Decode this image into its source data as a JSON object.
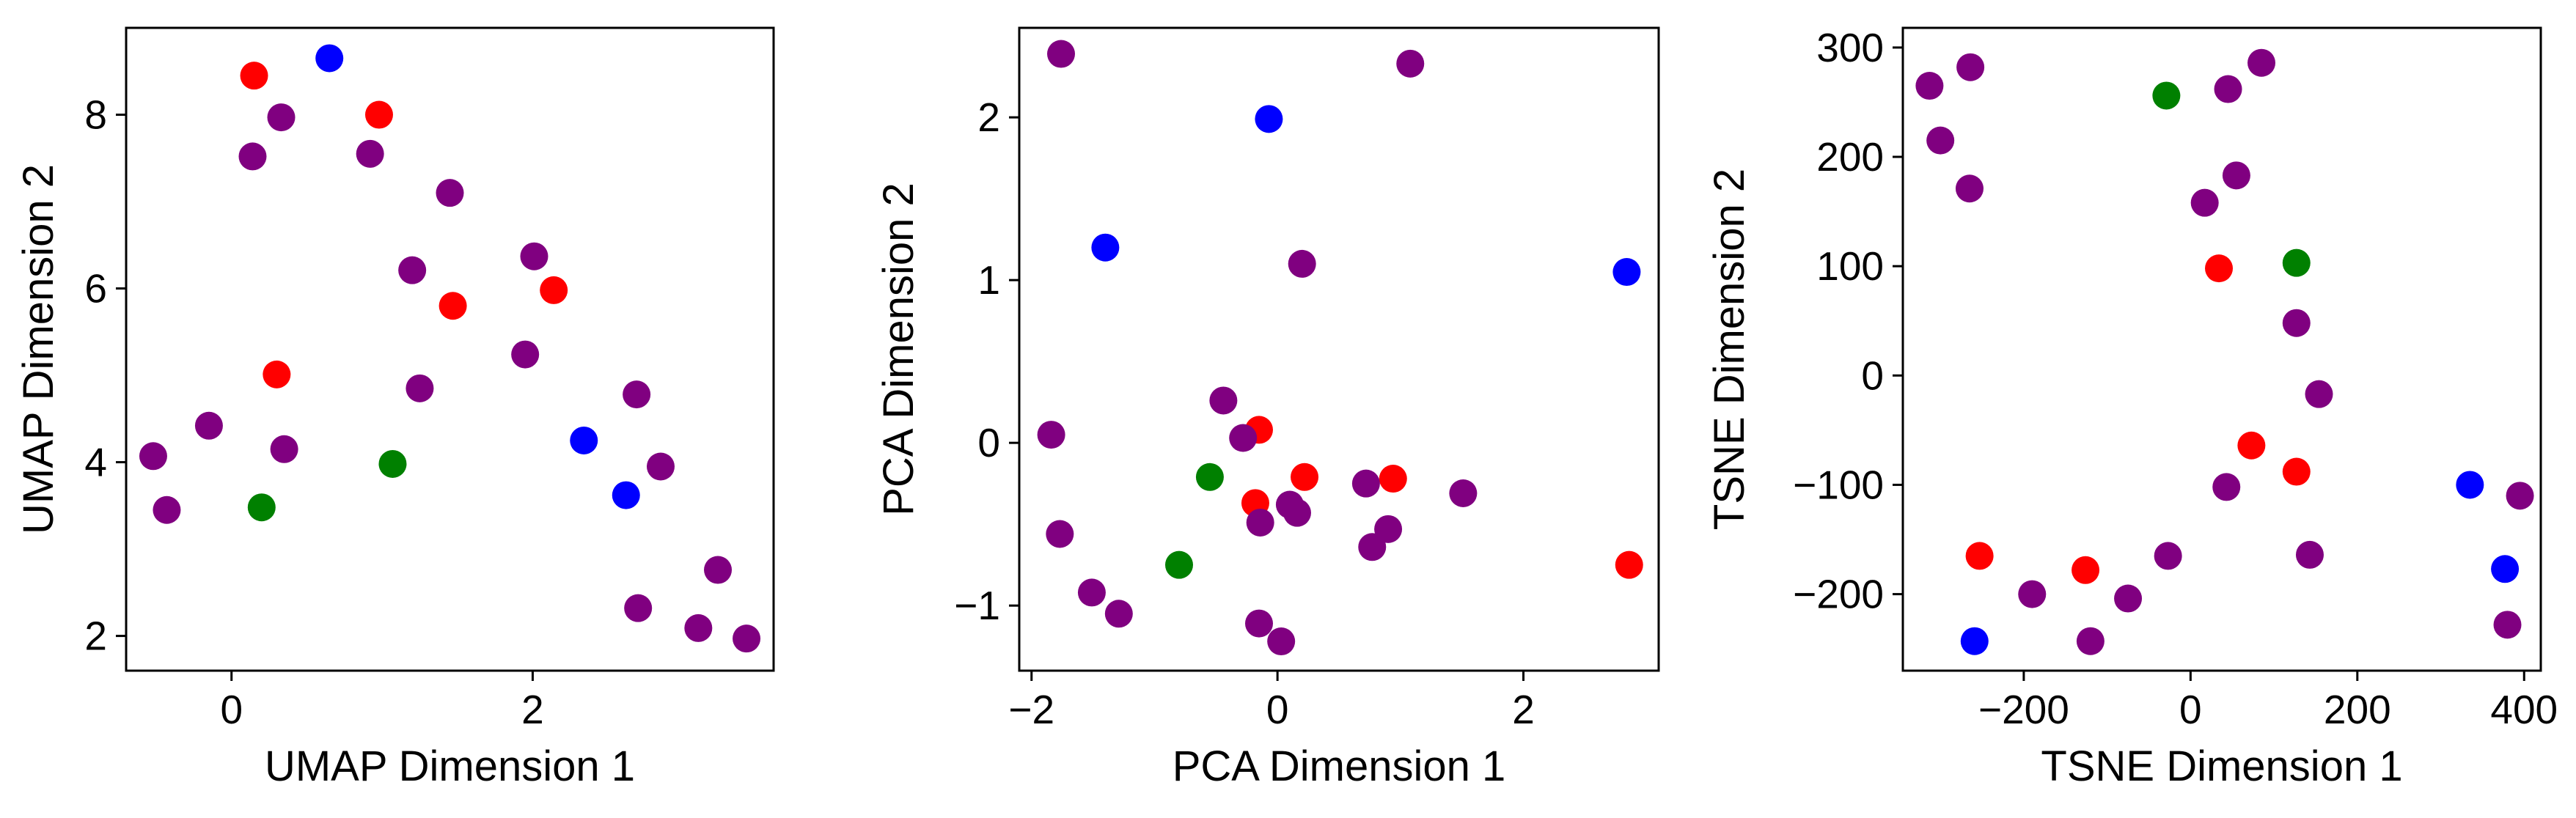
{
  "colors": {
    "purple": "#800080",
    "red": "#ff0000",
    "blue": "#0000ff",
    "green": "#008000"
  },
  "chart_data": [
    {
      "type": "scatter",
      "xlabel": "UMAP Dimension 1",
      "ylabel": "UMAP Dimension 2",
      "xlim": [
        -0.7,
        3.6
      ],
      "ylim": [
        1.6,
        9.0
      ],
      "xticks": [
        0,
        2
      ],
      "yticks": [
        2,
        4,
        6,
        8
      ],
      "points": [
        {
          "x": 0.15,
          "y": 8.45,
          "c": "red"
        },
        {
          "x": 0.65,
          "y": 8.65,
          "c": "blue"
        },
        {
          "x": 0.33,
          "y": 7.97,
          "c": "purple"
        },
        {
          "x": 0.98,
          "y": 8.0,
          "c": "red"
        },
        {
          "x": 0.14,
          "y": 7.52,
          "c": "purple"
        },
        {
          "x": 0.92,
          "y": 7.55,
          "c": "purple"
        },
        {
          "x": 1.45,
          "y": 7.1,
          "c": "purple"
        },
        {
          "x": 1.2,
          "y": 6.21,
          "c": "purple"
        },
        {
          "x": 2.01,
          "y": 6.37,
          "c": "purple"
        },
        {
          "x": 2.14,
          "y": 5.98,
          "c": "red"
        },
        {
          "x": 1.47,
          "y": 5.8,
          "c": "red"
        },
        {
          "x": 1.95,
          "y": 5.24,
          "c": "purple"
        },
        {
          "x": 0.3,
          "y": 5.01,
          "c": "red"
        },
        {
          "x": 1.25,
          "y": 4.85,
          "c": "purple"
        },
        {
          "x": 2.69,
          "y": 4.78,
          "c": "purple"
        },
        {
          "x": -0.15,
          "y": 4.42,
          "c": "purple"
        },
        {
          "x": 0.35,
          "y": 4.15,
          "c": "purple"
        },
        {
          "x": 2.34,
          "y": 4.25,
          "c": "blue"
        },
        {
          "x": -0.52,
          "y": 4.07,
          "c": "purple"
        },
        {
          "x": 1.07,
          "y": 3.98,
          "c": "green"
        },
        {
          "x": 2.85,
          "y": 3.95,
          "c": "purple"
        },
        {
          "x": 2.62,
          "y": 3.62,
          "c": "blue"
        },
        {
          "x": -0.43,
          "y": 3.45,
          "c": "purple"
        },
        {
          "x": 0.2,
          "y": 3.48,
          "c": "green"
        },
        {
          "x": 3.23,
          "y": 2.76,
          "c": "purple"
        },
        {
          "x": 2.7,
          "y": 2.32,
          "c": "purple"
        },
        {
          "x": 3.1,
          "y": 2.09,
          "c": "purple"
        },
        {
          "x": 3.42,
          "y": 1.97,
          "c": "purple"
        }
      ]
    },
    {
      "type": "scatter",
      "xlabel": "PCA Dimension 1",
      "ylabel": "PCA Dimension 2",
      "xlim": [
        -2.1,
        3.1
      ],
      "ylim": [
        -1.4,
        2.55
      ],
      "xticks": [
        -2,
        0,
        2
      ],
      "yticks": [
        -1,
        0,
        1,
        2
      ],
      "points": [
        {
          "x": -1.76,
          "y": 2.39,
          "c": "purple"
        },
        {
          "x": 1.08,
          "y": 2.33,
          "c": "purple"
        },
        {
          "x": -0.07,
          "y": 1.99,
          "c": "blue"
        },
        {
          "x": -1.4,
          "y": 1.2,
          "c": "blue"
        },
        {
          "x": 0.2,
          "y": 1.1,
          "c": "purple"
        },
        {
          "x": 2.84,
          "y": 1.05,
          "c": "blue"
        },
        {
          "x": -0.44,
          "y": 0.26,
          "c": "purple"
        },
        {
          "x": -0.15,
          "y": 0.08,
          "c": "red"
        },
        {
          "x": -0.28,
          "y": 0.03,
          "c": "purple"
        },
        {
          "x": -1.84,
          "y": 0.05,
          "c": "purple"
        },
        {
          "x": -0.55,
          "y": -0.21,
          "c": "green"
        },
        {
          "x": 0.22,
          "y": -0.21,
          "c": "red"
        },
        {
          "x": 0.94,
          "y": -0.22,
          "c": "red"
        },
        {
          "x": 0.72,
          "y": -0.25,
          "c": "purple"
        },
        {
          "x": 1.51,
          "y": -0.31,
          "c": "purple"
        },
        {
          "x": -0.18,
          "y": -0.37,
          "c": "red"
        },
        {
          "x": 0.1,
          "y": -0.38,
          "c": "purple"
        },
        {
          "x": 0.16,
          "y": -0.43,
          "c": "purple"
        },
        {
          "x": -0.14,
          "y": -0.49,
          "c": "purple"
        },
        {
          "x": 0.9,
          "y": -0.53,
          "c": "purple"
        },
        {
          "x": -1.77,
          "y": -0.56,
          "c": "purple"
        },
        {
          "x": 0.77,
          "y": -0.64,
          "c": "purple"
        },
        {
          "x": -0.8,
          "y": -0.75,
          "c": "green"
        },
        {
          "x": 2.86,
          "y": -0.75,
          "c": "red"
        },
        {
          "x": -1.51,
          "y": -0.92,
          "c": "purple"
        },
        {
          "x": -1.29,
          "y": -1.05,
          "c": "purple"
        },
        {
          "x": -0.15,
          "y": -1.11,
          "c": "purple"
        },
        {
          "x": 0.03,
          "y": -1.22,
          "c": "purple"
        }
      ]
    },
    {
      "type": "scatter",
      "xlabel": "TSNE Dimension 1",
      "ylabel": "TSNE Dimension 2",
      "xlim": [
        -345,
        420
      ],
      "ylim": [
        -270,
        318
      ],
      "xticks": [
        -200,
        0,
        200,
        400
      ],
      "yticks": [
        -200,
        -100,
        0,
        100,
        200,
        300
      ],
      "points": [
        {
          "x": -313,
          "y": 265,
          "c": "purple"
        },
        {
          "x": -264,
          "y": 282,
          "c": "purple"
        },
        {
          "x": 85,
          "y": 286,
          "c": "purple"
        },
        {
          "x": -29,
          "y": 256,
          "c": "green"
        },
        {
          "x": 45,
          "y": 262,
          "c": "purple"
        },
        {
          "x": -300,
          "y": 215,
          "c": "purple"
        },
        {
          "x": 55,
          "y": 183,
          "c": "purple"
        },
        {
          "x": -265,
          "y": 171,
          "c": "purple"
        },
        {
          "x": 17,
          "y": 158,
          "c": "purple"
        },
        {
          "x": 127,
          "y": 103,
          "c": "green"
        },
        {
          "x": 34,
          "y": 98,
          "c": "red"
        },
        {
          "x": 127,
          "y": 48,
          "c": "purple"
        },
        {
          "x": 154,
          "y": -17,
          "c": "purple"
        },
        {
          "x": 73,
          "y": -64,
          "c": "red"
        },
        {
          "x": 127,
          "y": -88,
          "c": "red"
        },
        {
          "x": 43,
          "y": -102,
          "c": "purple"
        },
        {
          "x": 335,
          "y": -100,
          "c": "blue"
        },
        {
          "x": 395,
          "y": -110,
          "c": "purple"
        },
        {
          "x": -253,
          "y": -165,
          "c": "red"
        },
        {
          "x": -27,
          "y": -165,
          "c": "purple"
        },
        {
          "x": 143,
          "y": -164,
          "c": "purple"
        },
        {
          "x": 377,
          "y": -177,
          "c": "blue"
        },
        {
          "x": -126,
          "y": -178,
          "c": "red"
        },
        {
          "x": -190,
          "y": -200,
          "c": "purple"
        },
        {
          "x": -75,
          "y": -204,
          "c": "purple"
        },
        {
          "x": 380,
          "y": -228,
          "c": "purple"
        },
        {
          "x": -259,
          "y": -243,
          "c": "blue"
        },
        {
          "x": -120,
          "y": -243,
          "c": "purple"
        }
      ]
    }
  ]
}
